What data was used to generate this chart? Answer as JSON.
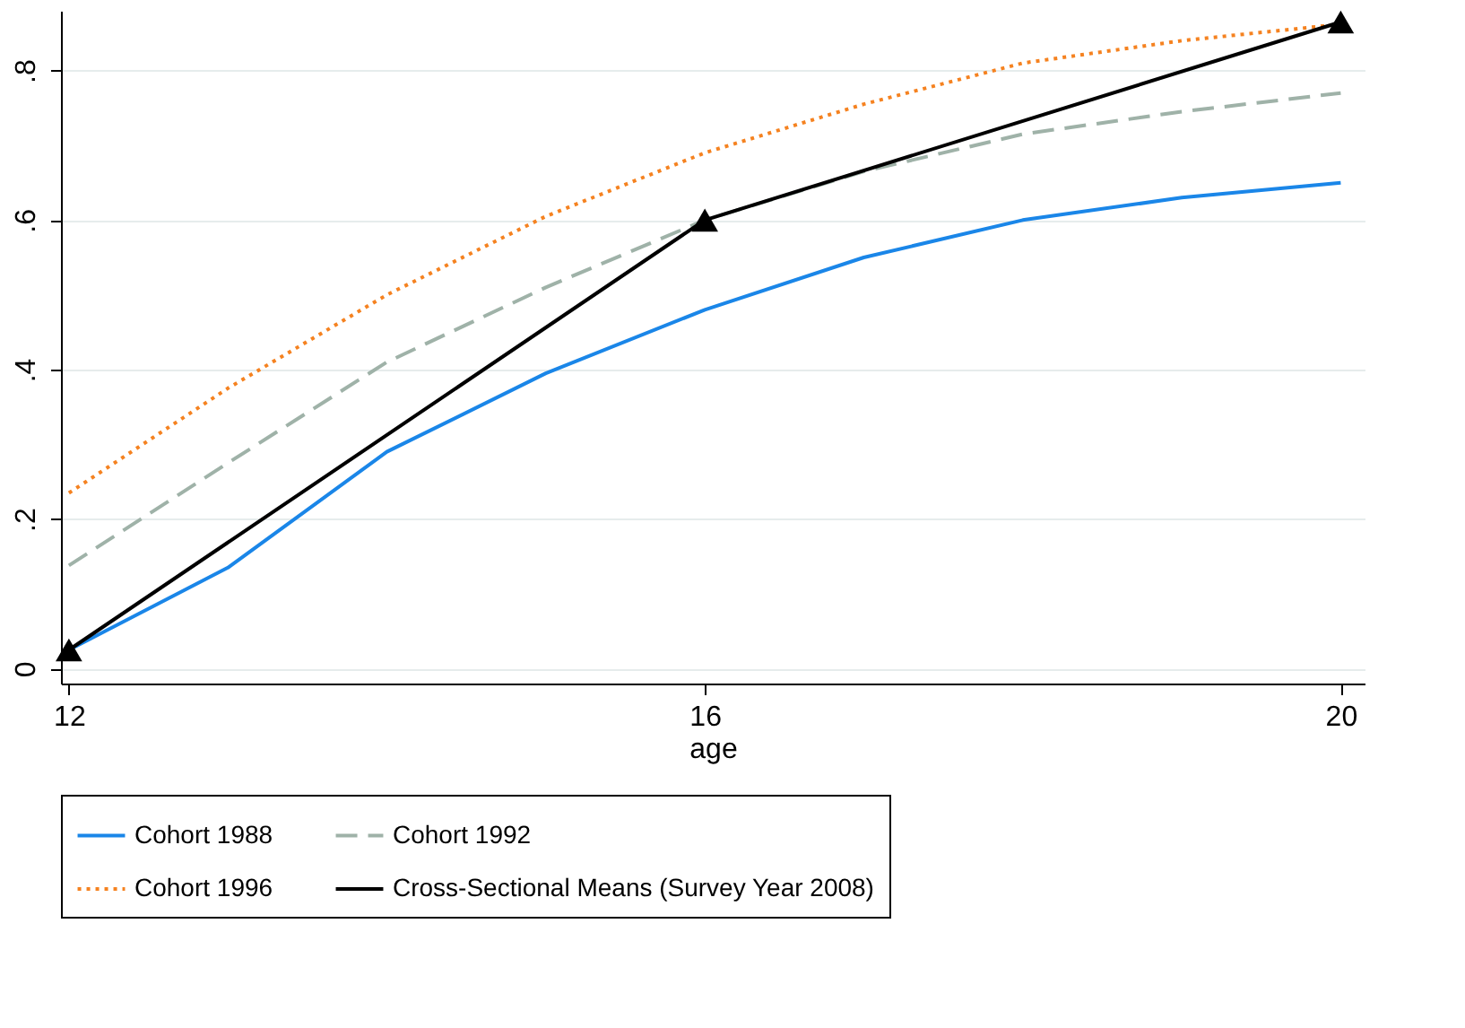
{
  "chart_data": {
    "type": "line",
    "xlabel": "age",
    "x": [
      12,
      13,
      14,
      15,
      16,
      17,
      18,
      19,
      20
    ],
    "xlim": [
      11.95,
      20.15
    ],
    "xticks": [
      12,
      16,
      20
    ],
    "ylim": [
      -0.02,
      0.88
    ],
    "yticks": [
      0,
      {
        "value": 0.2,
        "label": ".2"
      },
      {
        "value": 0.4,
        "label": ".4"
      },
      {
        "value": 0.6,
        "label": ".6"
      },
      {
        "value": 0.8,
        "label": ".8"
      }
    ],
    "grid": "y",
    "legend": "bottom",
    "series": [
      {
        "name": "Cohort 1988",
        "color": "#1a86e8",
        "line_style": "solid",
        "marker": "none",
        "values": [
          0.025,
          0.135,
          0.29,
          0.395,
          0.48,
          0.55,
          0.6,
          0.63,
          0.65
        ]
      },
      {
        "name": "Cohort 1992",
        "color": "#9fb2a8",
        "line_style": "dashed",
        "marker": "none",
        "values": [
          0.138,
          0.275,
          0.41,
          0.51,
          0.6,
          0.665,
          0.715,
          0.745,
          0.77
        ]
      },
      {
        "name": "Cohort 1996",
        "color": "#f58220",
        "line_style": "dotted",
        "marker": "none",
        "values": [
          0.235,
          0.375,
          0.5,
          0.605,
          0.69,
          0.755,
          0.81,
          0.84,
          0.862
        ]
      },
      {
        "name": "Cross-Sectional Means (Survey Year 2008)",
        "color": "#000000",
        "line_style": "solid",
        "marker": "triangle",
        "x": [
          12,
          16,
          20
        ],
        "values": [
          0.025,
          0.6,
          0.865
        ]
      }
    ]
  }
}
